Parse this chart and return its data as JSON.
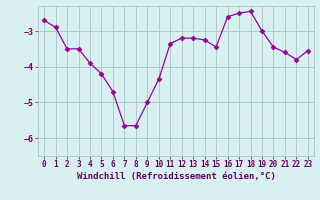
{
  "x": [
    0,
    1,
    2,
    3,
    4,
    5,
    6,
    7,
    8,
    9,
    10,
    11,
    12,
    13,
    14,
    15,
    16,
    17,
    18,
    19,
    20,
    21,
    22,
    23
  ],
  "y": [
    -2.7,
    -2.9,
    -3.5,
    -3.5,
    -3.9,
    -4.2,
    -4.7,
    -5.65,
    -5.65,
    -5.0,
    -4.35,
    -3.35,
    -3.2,
    -3.2,
    -3.25,
    -3.45,
    -2.6,
    -2.5,
    -2.45,
    -3.0,
    -3.45,
    -3.6,
    -3.8,
    -3.55
  ],
  "line_color": "#990099",
  "marker": "D",
  "marker_size": 2.5,
  "bg_color": "#d8f0f0",
  "grid_color": "#aacccc",
  "axis_color": "#660066",
  "xlabel": "Windchill (Refroidissement éolien,°C)",
  "xlabel_fontsize": 6.5,
  "tick_fontsize": 5.5,
  "ylim": [
    -6.5,
    -2.3
  ],
  "yticks": [
    -6,
    -5,
    -4,
    -3
  ],
  "figsize": [
    3.2,
    2.0
  ],
  "dpi": 100
}
